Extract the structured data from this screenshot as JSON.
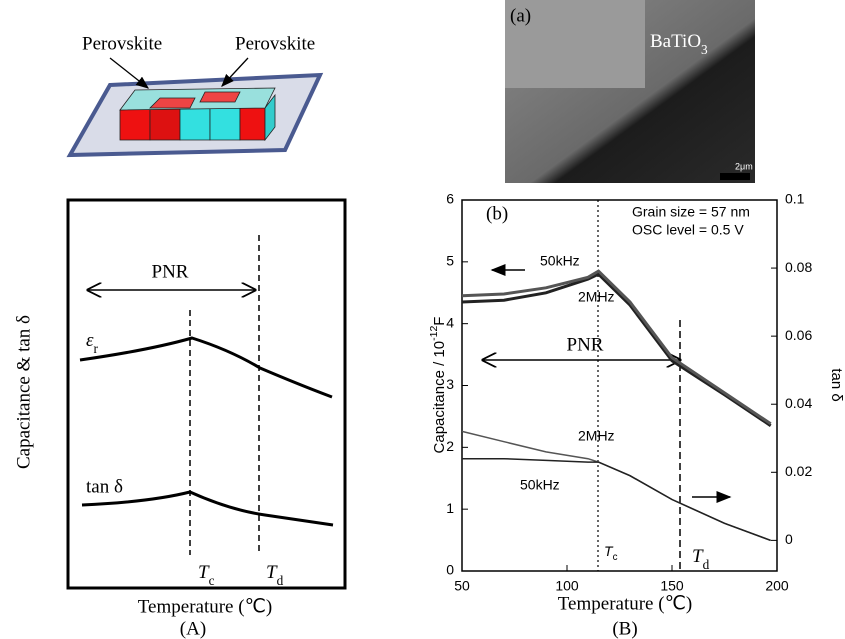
{
  "panel_a": {
    "labels": [
      "Perovskite",
      "Perovskite"
    ],
    "y_label": "Capacitance & tan δ",
    "pnr": "PNR",
    "er": {
      "main": "ε",
      "sub": "r"
    },
    "tan": "tan δ",
    "tc": {
      "main": "T",
      "sub": "c"
    },
    "td": {
      "main": "T",
      "sub": "d"
    },
    "x_label": "Temperature (℃)",
    "caption": "(A)"
  },
  "panel_b": {
    "image_label": "(a)",
    "material": {
      "main": "BaTiO",
      "sub": "3"
    },
    "scale": "2μm",
    "caption": "(B)"
  },
  "chart_data": {
    "type": "line",
    "label": "(b)",
    "annotations": [
      "Grain size = 57 nm",
      "OSC level = 0.5 V"
    ],
    "pnr": "PNR",
    "tc": {
      "main": "T",
      "sub": "c"
    },
    "td": {
      "main": "T",
      "sub": "d"
    },
    "y_label": {
      "main": "Capacitance / 10",
      "sup": "-12",
      "tail": "F"
    },
    "y2_label": "tan δ",
    "x_label": "Temperature (℃)",
    "xlim": [
      50,
      200
    ],
    "xticks": [
      50,
      100,
      150,
      200
    ],
    "ylim": [
      0,
      6
    ],
    "yticks": [
      0,
      1,
      2,
      3,
      4,
      5,
      6
    ],
    "y2lim": [
      -0.009,
      0.1
    ],
    "y2ticks": [
      0,
      0.02,
      0.04,
      0.06,
      0.08,
      0.1
    ],
    "x": [
      50,
      70,
      90,
      110,
      115,
      130,
      150,
      175,
      197
    ],
    "series": [
      {
        "name": "50kHz",
        "color": "#222222",
        "values": [
          4.35,
          4.38,
          4.5,
          4.72,
          4.8,
          4.3,
          3.4,
          2.85,
          2.35
        ]
      },
      {
        "name": "2MHz",
        "color": "#555555",
        "values": [
          4.45,
          4.48,
          4.58,
          4.75,
          4.85,
          4.35,
          3.45,
          2.88,
          2.38
        ]
      },
      {
        "name": "2MHz",
        "color": "#555555",
        "axis": "y2",
        "values": [
          0.032,
          0.029,
          0.026,
          0.024,
          0.023,
          0.019,
          0.012,
          0.005,
          0.0
        ]
      },
      {
        "name": "50kHz",
        "color": "#222222",
        "axis": "y2",
        "values": [
          0.024,
          0.024,
          0.0235,
          0.023,
          0.023,
          0.019,
          0.012,
          0.005,
          0.0
        ]
      }
    ]
  }
}
